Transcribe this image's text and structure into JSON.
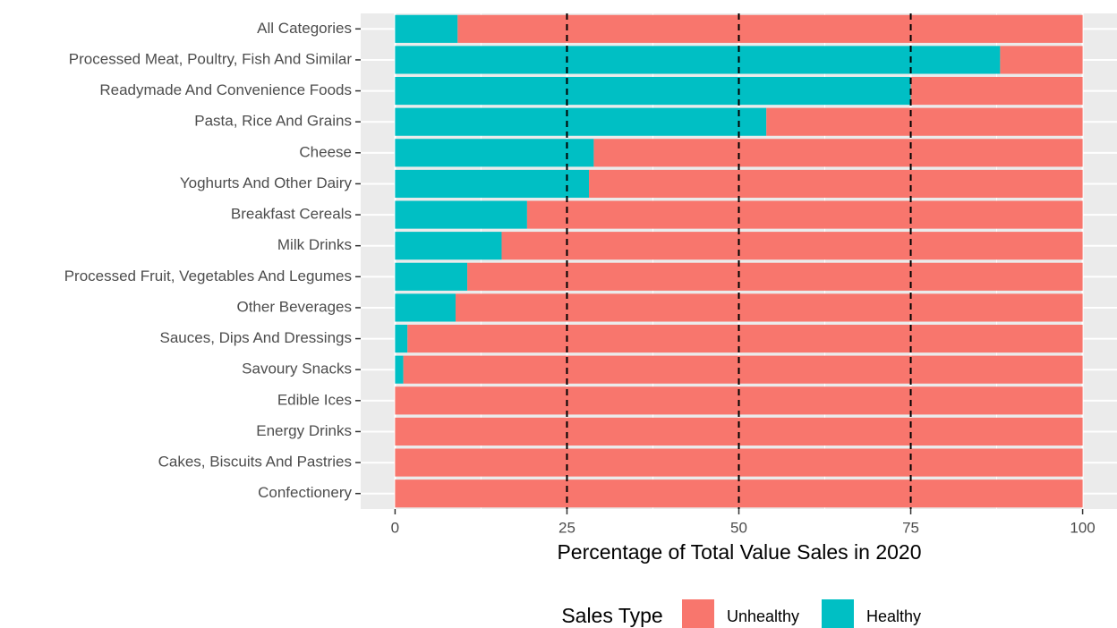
{
  "chart_data": {
    "type": "stacked-barh",
    "x_label": "Percentage of Total Value Sales in 2020",
    "legend_title": "Sales Type",
    "legend_position": "bottom",
    "categories": [
      "All Categories",
      "Processed Meat, Poultry, Fish And Similar",
      "Readymade And Convenience Foods",
      "Pasta, Rice And Grains",
      "Cheese",
      "Yoghurts And Other Dairy",
      "Breakfast Cereals",
      "Milk Drinks",
      "Processed Fruit, Vegetables And Legumes",
      "Other Beverages",
      "Sauces, Dips And Dressings",
      "Savoury Snacks",
      "Edible Ices",
      "Energy Drinks",
      "Cakes, Biscuits And Pastries",
      "Confectionery"
    ],
    "series": [
      {
        "name": "Unhealthy",
        "color": "#F8766D",
        "values": [
          90.9,
          12.0,
          25.0,
          46.0,
          71.1,
          71.8,
          80.8,
          84.5,
          89.5,
          91.2,
          98.2,
          98.8,
          100,
          100,
          100,
          100
        ]
      },
      {
        "name": "Healthy",
        "color": "#00BFC4",
        "values": [
          9.1,
          88.0,
          75.0,
          54.0,
          28.9,
          28.2,
          19.2,
          15.5,
          10.5,
          8.8,
          1.8,
          1.2,
          0,
          0,
          0,
          0
        ]
      }
    ],
    "xlim": [
      -5,
      105
    ],
    "xticks": [
      0,
      25,
      50,
      75,
      100
    ],
    "reference_lines": [
      25,
      50,
      75
    ],
    "grid": true
  }
}
